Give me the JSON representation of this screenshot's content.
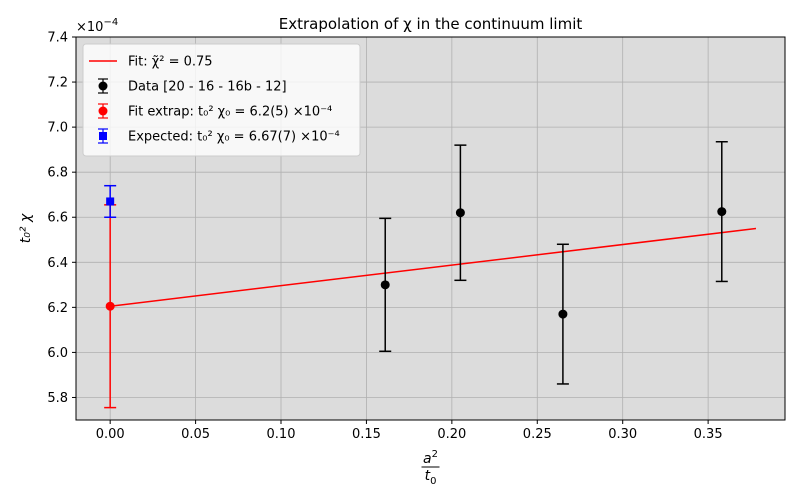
{
  "chart_data": {
    "type": "scatter",
    "title": "Extrapolation of χ in the continuum limit",
    "xlabel": "a²/t₀",
    "xlabel_num": "a",
    "xlabel_den": "t",
    "ylabel": "t₀² χ",
    "y_offset_text": "×10",
    "y_offset_exp": "−4",
    "xlim": [
      -0.02,
      0.395
    ],
    "ylim": [
      5.7,
      7.4
    ],
    "xticks": [
      0.0,
      0.05,
      0.1,
      0.15,
      0.2,
      0.25,
      0.3,
      0.35
    ],
    "xtick_labels": [
      "0.00",
      "0.05",
      "0.10",
      "0.15",
      "0.20",
      "0.25",
      "0.30",
      "0.35"
    ],
    "yticks": [
      5.8,
      6.0,
      6.2,
      6.4,
      6.6,
      6.8,
      7.0,
      7.2,
      7.4
    ],
    "ytick_labels": [
      "5.8",
      "6.0",
      "6.2",
      "6.4",
      "6.6",
      "6.8",
      "7.0",
      "7.2",
      "7.4"
    ],
    "grid": true,
    "legend_position": "top-left",
    "colors": {
      "fit": "#ff0000",
      "data": "#000000",
      "extrap": "#ff0000",
      "expected": "#0000ff",
      "background": "#dcdcdc"
    },
    "fit_line": {
      "name": "Fit: χ̃² = 0.75",
      "x": [
        0.0,
        0.378
      ],
      "y": [
        6.205,
        6.55
      ]
    },
    "series": [
      {
        "name": "Data [20 - 16 - 16b - 12]",
        "marker": "circle",
        "points": [
          {
            "x": 0.161,
            "y": 6.3,
            "err": 0.295
          },
          {
            "x": 0.205,
            "y": 6.62,
            "err": 0.3
          },
          {
            "x": 0.265,
            "y": 6.17,
            "err": 0.31
          },
          {
            "x": 0.358,
            "y": 6.625,
            "err": 0.31
          }
        ]
      },
      {
        "name": "Fit extrap: t₀² χ₀ = 6.2(5) ×10⁻⁴",
        "marker": "circle",
        "points": [
          {
            "x": 0.0,
            "y": 6.205,
            "err": 0.45
          }
        ]
      },
      {
        "name": "Expected: t₀² χ₀ = 6.67(7) ×10⁻⁴",
        "marker": "square",
        "points": [
          {
            "x": 0.0,
            "y": 6.67,
            "err": 0.07
          }
        ]
      }
    ]
  }
}
